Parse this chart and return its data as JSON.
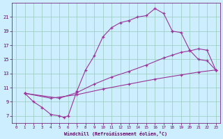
{
  "xlabel": "Windchill (Refroidissement éolien,°C)",
  "bg_color": "#cceeff",
  "line_color": "#993399",
  "xlim": [
    -0.5,
    23.5
  ],
  "ylim": [
    6.0,
    23.0
  ],
  "xticks": [
    0,
    1,
    2,
    3,
    4,
    5,
    6,
    7,
    8,
    9,
    10,
    11,
    12,
    13,
    14,
    15,
    16,
    17,
    18,
    19,
    20,
    21,
    22,
    23
  ],
  "yticks": [
    7,
    9,
    11,
    13,
    15,
    17,
    19,
    21
  ],
  "grid_color": "#99ccbb",
  "font_color": "#660066",
  "curve1_x": [
    1,
    2,
    3,
    4,
    5,
    5.5,
    6,
    7,
    8,
    9,
    10,
    11,
    12,
    13,
    14,
    15,
    16,
    17,
    18
  ],
  "curve1_y": [
    10.2,
    9.0,
    8.2,
    7.2,
    7.0,
    6.8,
    7.0,
    10.5,
    13.5,
    15.5,
    18.2,
    19.5,
    20.2,
    20.5,
    21.0,
    21.2,
    22.2,
    21.5,
    19.0
  ],
  "curve2_x": [
    18,
    19,
    20,
    21,
    22,
    23
  ],
  "curve2_y": [
    19.0,
    18.8,
    16.3,
    15.0,
    14.8,
    13.5
  ],
  "curve3_x": [
    1,
    5,
    7,
    9,
    11,
    13,
    15,
    17,
    18,
    19,
    20,
    21,
    22,
    23
  ],
  "curve3_y": [
    10.2,
    9.5,
    10.3,
    11.5,
    12.5,
    13.3,
    14.2,
    15.2,
    15.6,
    16.0,
    16.2,
    16.5,
    16.3,
    13.5
  ],
  "curve4_x": [
    1,
    4,
    7,
    10,
    13,
    16,
    19,
    21,
    23
  ],
  "curve4_y": [
    10.2,
    9.5,
    10.0,
    10.8,
    11.5,
    12.2,
    12.8,
    13.2,
    13.5
  ]
}
